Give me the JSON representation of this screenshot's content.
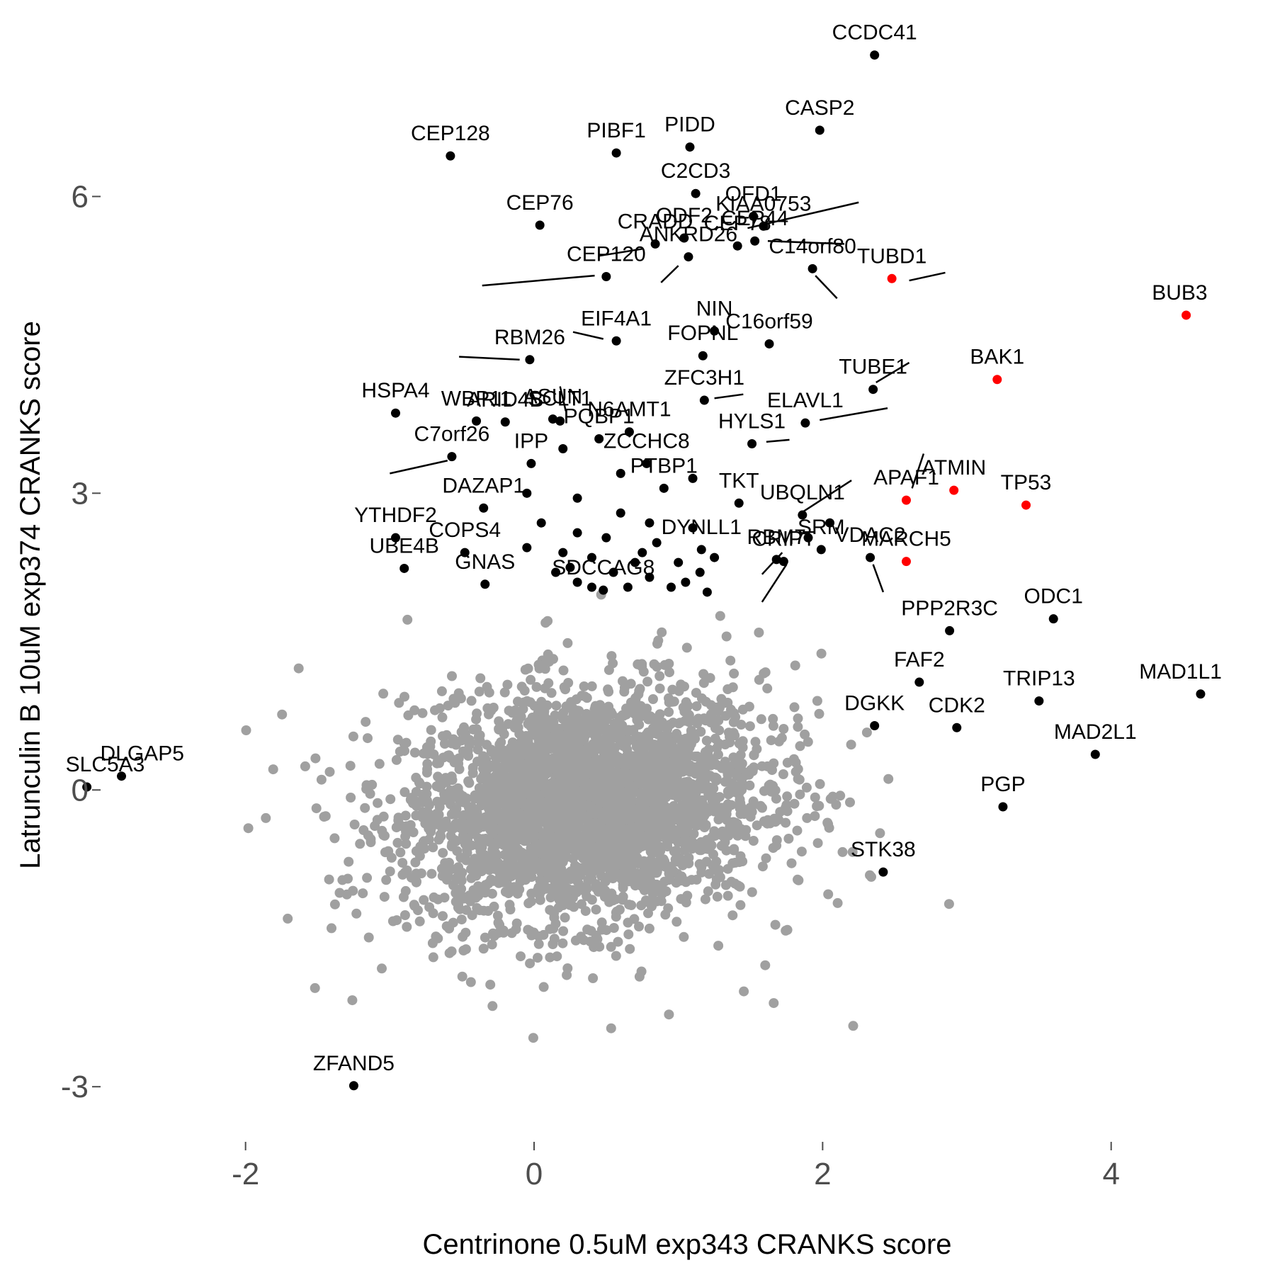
{
  "chart_data": {
    "type": "scatter",
    "xlabel": "Centrinone 0.5uM exp343 CRANKS score",
    "ylabel": "Latrunculin B 10uM exp374 CRANKS score",
    "xlim": [
      -3.0,
      4.9
    ],
    "ylim": [
      -3.5,
      7.7
    ],
    "x_ticks": [
      {
        "value": -2,
        "label": "-2"
      },
      {
        "value": 0,
        "label": "0"
      },
      {
        "value": 2,
        "label": "2"
      },
      {
        "value": 4,
        "label": "4"
      }
    ],
    "y_ticks": [
      {
        "value": -3,
        "label": "-3"
      },
      {
        "value": 0,
        "label": "0"
      },
      {
        "value": 3,
        "label": "3"
      },
      {
        "value": 6,
        "label": "6"
      }
    ],
    "grid": false,
    "colors": {
      "background": "#ffffff",
      "background_genes": "#a0a0a0",
      "hit_genes": "#000000",
      "highlight_genes": "#ff0000"
    },
    "background_cloud": {
      "count": 3200,
      "x_mean": 0.35,
      "x_sd": 0.62,
      "y_mean": -0.15,
      "y_sd": 0.58,
      "correlation": 0.15,
      "color": "#a0a0a0"
    },
    "labeled_points": [
      {
        "gene": "CCDC41",
        "x": 2.36,
        "y": 7.43,
        "color": "#000000"
      },
      {
        "gene": "CASP2",
        "x": 1.98,
        "y": 6.67,
        "color": "#000000"
      },
      {
        "gene": "PIDD",
        "x": 1.08,
        "y": 6.5,
        "color": "#000000"
      },
      {
        "gene": "PIBF1",
        "x": 0.57,
        "y": 6.44,
        "color": "#000000"
      },
      {
        "gene": "CEP128",
        "x": -0.58,
        "y": 6.41,
        "color": "#000000"
      },
      {
        "gene": "C2CD3",
        "x": 1.12,
        "y": 6.03,
        "color": "#000000"
      },
      {
        "gene": "OFD1",
        "x": 1.52,
        "y": 5.8,
        "color": "#000000"
      },
      {
        "gene": "KIAA0753",
        "x": 1.59,
        "y": 5.7,
        "color": "#000000"
      },
      {
        "gene": "CEP76",
        "x": 0.04,
        "y": 5.71,
        "color": "#000000"
      },
      {
        "gene": "ODF2",
        "x": 1.04,
        "y": 5.58,
        "color": "#000000"
      },
      {
        "gene": "CEP44",
        "x": 1.53,
        "y": 5.55,
        "color": "#000000"
      },
      {
        "gene": "CRADD",
        "x": 0.84,
        "y": 5.52,
        "color": "#000000"
      },
      {
        "gene": "CEP78",
        "x": 1.41,
        "y": 5.5,
        "color": "#000000"
      },
      {
        "gene": "ANKRD26",
        "x": 1.07,
        "y": 5.39,
        "color": "#000000"
      },
      {
        "gene": "C14orf80",
        "x": 1.93,
        "y": 5.27,
        "color": "#000000"
      },
      {
        "gene": "TUBD1",
        "x": 2.48,
        "y": 5.17,
        "color": "#ff0000"
      },
      {
        "gene": "CEP120",
        "x": 0.5,
        "y": 5.19,
        "color": "#000000"
      },
      {
        "gene": "BUB3",
        "x": 4.52,
        "y": 4.8,
        "color": "#ff0000"
      },
      {
        "gene": "NIN",
        "x": 1.25,
        "y": 4.64,
        "color": "#000000"
      },
      {
        "gene": "EIF4A1",
        "x": 0.57,
        "y": 4.54,
        "color": "#000000"
      },
      {
        "gene": "C16orf59",
        "x": 1.63,
        "y": 4.51,
        "color": "#000000"
      },
      {
        "gene": "FOPNL",
        "x": 1.17,
        "y": 4.39,
        "color": "#000000"
      },
      {
        "gene": "RBM26",
        "x": -0.03,
        "y": 4.35,
        "color": "#000000"
      },
      {
        "gene": "BAK1",
        "x": 3.21,
        "y": 4.15,
        "color": "#ff0000"
      },
      {
        "gene": "TUBE1",
        "x": 2.35,
        "y": 4.05,
        "color": "#000000"
      },
      {
        "gene": "ZFC3H1",
        "x": 1.18,
        "y": 3.94,
        "color": "#000000"
      },
      {
        "gene": "HSPA4",
        "x": -0.96,
        "y": 3.81,
        "color": "#000000"
      },
      {
        "gene": "WBP11",
        "x": -0.4,
        "y": 3.73,
        "color": "#000000"
      },
      {
        "gene": "ASUN",
        "x": 0.13,
        "y": 3.75,
        "color": "#000000"
      },
      {
        "gene": "SCLT1",
        "x": 0.18,
        "y": 3.73,
        "color": "#000000"
      },
      {
        "gene": "ELAVL1",
        "x": 1.88,
        "y": 3.71,
        "color": "#000000"
      },
      {
        "gene": "N6AMT1",
        "x": 0.66,
        "y": 3.62,
        "color": "#000000"
      },
      {
        "gene": "HYLS1",
        "x": 1.51,
        "y": 3.5,
        "color": "#000000"
      },
      {
        "gene": "C7orf26",
        "x": -0.57,
        "y": 3.37,
        "color": "#000000"
      },
      {
        "gene": "PQBP1",
        "x": 0.45,
        "y": 3.55,
        "color": "#000000"
      },
      {
        "gene": "ZCCHC8",
        "x": 0.78,
        "y": 3.3,
        "color": "#000000"
      },
      {
        "gene": "ARID4B",
        "x": -0.2,
        "y": 3.72,
        "color": "#000000"
      },
      {
        "gene": "APAF1",
        "x": 2.58,
        "y": 2.93,
        "color": "#ff0000"
      },
      {
        "gene": "ATMIN",
        "x": 2.91,
        "y": 3.03,
        "color": "#ff0000"
      },
      {
        "gene": "TP53",
        "x": 3.41,
        "y": 2.88,
        "color": "#ff0000"
      },
      {
        "gene": "DAZAP1",
        "x": -0.35,
        "y": 2.85,
        "color": "#000000"
      },
      {
        "gene": "IPP",
        "x": -0.02,
        "y": 3.3,
        "color": "#000000"
      },
      {
        "gene": "TKT",
        "x": 1.42,
        "y": 2.9,
        "color": "#000000"
      },
      {
        "gene": "UBQLN1",
        "x": 1.86,
        "y": 2.78,
        "color": "#000000"
      },
      {
        "gene": "PTBP1",
        "x": 0.9,
        "y": 3.05,
        "color": "#000000"
      },
      {
        "gene": "YTHDF2",
        "x": -0.96,
        "y": 2.55,
        "color": "#000000"
      },
      {
        "gene": "COPS4",
        "x": -0.48,
        "y": 2.4,
        "color": "#000000"
      },
      {
        "gene": "DYNLL1",
        "x": 1.16,
        "y": 2.43,
        "color": "#000000"
      },
      {
        "gene": "VDAC2",
        "x": 2.33,
        "y": 2.35,
        "color": "#000000"
      },
      {
        "gene": "MARCH5",
        "x": 2.58,
        "y": 2.31,
        "color": "#ff0000"
      },
      {
        "gene": "UBE4B",
        "x": -0.9,
        "y": 2.24,
        "color": "#000000"
      },
      {
        "gene": "CRIPT",
        "x": 1.73,
        "y": 2.31,
        "color": "#000000"
      },
      {
        "gene": "SRM",
        "x": 1.99,
        "y": 2.43,
        "color": "#000000"
      },
      {
        "gene": "RBM7",
        "x": 1.68,
        "y": 2.33,
        "color": "#000000"
      },
      {
        "gene": "GNAS",
        "x": -0.34,
        "y": 2.08,
        "color": "#000000"
      },
      {
        "gene": "SDCCAG8",
        "x": 0.48,
        "y": 2.02,
        "color": "#000000"
      },
      {
        "gene": "ODC1",
        "x": 3.6,
        "y": 1.73,
        "color": "#000000"
      },
      {
        "gene": "PPP2R3C",
        "x": 2.88,
        "y": 1.61,
        "color": "#000000"
      },
      {
        "gene": "FAF2",
        "x": 2.67,
        "y": 1.09,
        "color": "#000000"
      },
      {
        "gene": "TRIP13",
        "x": 3.5,
        "y": 0.9,
        "color": "#000000"
      },
      {
        "gene": "MAD1L1",
        "x": 4.62,
        "y": 0.97,
        "color": "#000000"
      },
      {
        "gene": "DGKK",
        "x": 2.36,
        "y": 0.65,
        "color": "#000000"
      },
      {
        "gene": "CDK2",
        "x": 2.93,
        "y": 0.63,
        "color": "#000000"
      },
      {
        "gene": "MAD2L1",
        "x": 3.89,
        "y": 0.36,
        "color": "#000000"
      },
      {
        "gene": "DLGAP5",
        "x": -2.86,
        "y": 0.14,
        "color": "#000000"
      },
      {
        "gene": "SLC5A3",
        "x": -3.1,
        "y": 0.03,
        "color": "#000000"
      },
      {
        "gene": "PGP",
        "x": 3.25,
        "y": -0.17,
        "color": "#000000"
      },
      {
        "gene": "STK38",
        "x": 2.42,
        "y": -0.83,
        "color": "#000000"
      },
      {
        "gene": "ZFAND5",
        "x": -1.25,
        "y": -2.99,
        "color": "#000000"
      }
    ],
    "unlabeled_hits": [
      {
        "x": 0.2,
        "y": 3.45
      },
      {
        "x": 0.6,
        "y": 3.2
      },
      {
        "x": 1.1,
        "y": 3.15
      },
      {
        "x": -0.05,
        "y": 3.0
      },
      {
        "x": 0.3,
        "y": 2.95
      },
      {
        "x": 0.6,
        "y": 2.8
      },
      {
        "x": 0.8,
        "y": 2.7
      },
      {
        "x": 1.1,
        "y": 2.65
      },
      {
        "x": 0.05,
        "y": 2.7
      },
      {
        "x": 0.3,
        "y": 2.6
      },
      {
        "x": 0.5,
        "y": 2.55
      },
      {
        "x": 0.85,
        "y": 2.5
      },
      {
        "x": 1.9,
        "y": 2.55
      },
      {
        "x": 2.05,
        "y": 2.7
      },
      {
        "x": -0.05,
        "y": 2.45
      },
      {
        "x": 0.2,
        "y": 2.4
      },
      {
        "x": 0.4,
        "y": 2.35
      },
      {
        "x": 0.7,
        "y": 2.3
      },
      {
        "x": 1.0,
        "y": 2.3
      },
      {
        "x": 1.25,
        "y": 2.35
      },
      {
        "x": 0.15,
        "y": 2.2
      },
      {
        "x": 0.55,
        "y": 2.2
      },
      {
        "x": 0.8,
        "y": 2.15
      },
      {
        "x": 1.05,
        "y": 2.1
      },
      {
        "x": 0.3,
        "y": 2.1
      },
      {
        "x": 0.65,
        "y": 2.05
      },
      {
        "x": 0.95,
        "y": 2.05
      },
      {
        "x": 1.2,
        "y": 2.0
      },
      {
        "x": 0.4,
        "y": 2.05
      },
      {
        "x": 1.15,
        "y": 2.2
      },
      {
        "x": 0.25,
        "y": 2.25
      },
      {
        "x": 0.75,
        "y": 2.4
      }
    ],
    "leader_lines": [
      {
        "from": [
          1.48,
          5.68
        ],
        "to": [
          2.25,
          5.94
        ]
      },
      {
        "from": [
          1.62,
          5.55
        ],
        "to": [
          2.15,
          5.52
        ]
      },
      {
        "from": [
          0.75,
          5.47
        ],
        "to": [
          0.45,
          5.4
        ]
      },
      {
        "from": [
          1.95,
          5.2
        ],
        "to": [
          2.1,
          4.97
        ]
      },
      {
        "from": [
          2.6,
          5.15
        ],
        "to": [
          2.85,
          5.23
        ]
      },
      {
        "from": [
          0.42,
          5.2
        ],
        "to": [
          -0.36,
          5.1
        ]
      },
      {
        "from": [
          1.0,
          5.3
        ],
        "to": [
          0.88,
          5.13
        ]
      },
      {
        "from": [
          0.48,
          4.56
        ],
        "to": [
          0.27,
          4.63
        ]
      },
      {
        "from": [
          -0.1,
          4.35
        ],
        "to": [
          -0.52,
          4.38
        ]
      },
      {
        "from": [
          1.25,
          3.96
        ],
        "to": [
          1.45,
          4.0
        ]
      },
      {
        "from": [
          2.37,
          4.12
        ],
        "to": [
          2.6,
          4.32
        ]
      },
      {
        "from": [
          1.98,
          3.74
        ],
        "to": [
          2.45,
          3.86
        ]
      },
      {
        "from": [
          1.61,
          3.52
        ],
        "to": [
          1.77,
          3.54
        ]
      },
      {
        "from": [
          0.22,
          3.83
        ],
        "to": [
          0.18,
          4.08
        ]
      },
      {
        "from": [
          -0.6,
          3.33
        ],
        "to": [
          -1.0,
          3.2
        ]
      },
      {
        "from": [
          2.62,
          3.05
        ],
        "to": [
          2.7,
          3.4
        ]
      },
      {
        "from": [
          1.85,
          2.8
        ],
        "to": [
          2.2,
          3.13
        ]
      },
      {
        "from": [
          1.72,
          2.4
        ],
        "to": [
          1.58,
          2.18
        ]
      },
      {
        "from": [
          1.75,
          2.28
        ],
        "to": [
          1.58,
          1.9
        ]
      },
      {
        "from": [
          2.35,
          2.28
        ],
        "to": [
          2.42,
          2.0
        ]
      }
    ]
  }
}
